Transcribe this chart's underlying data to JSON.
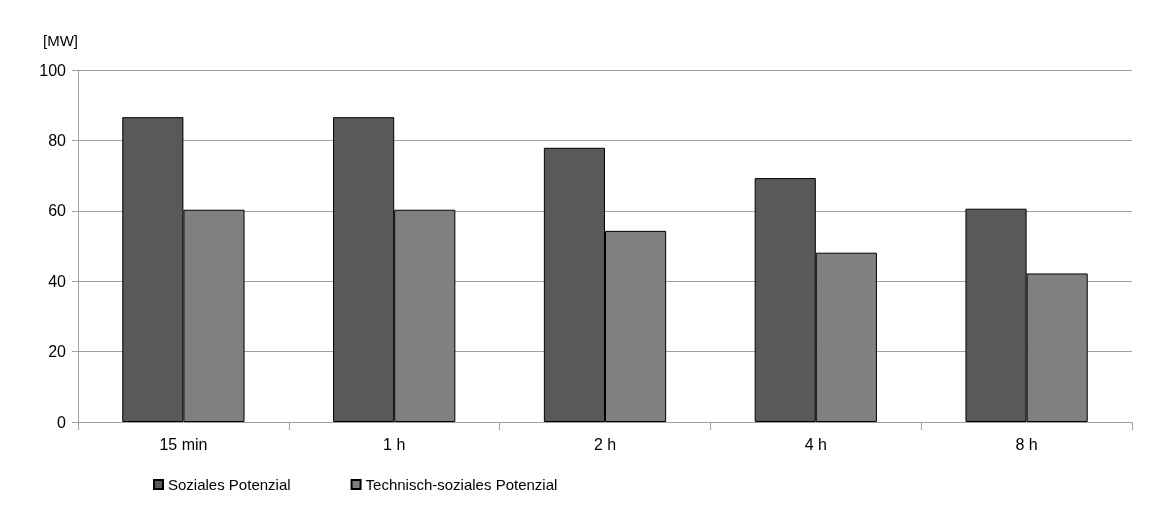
{
  "chart_data": {
    "type": "bar",
    "ylabel": "[MW]",
    "categories": [
      "15 min",
      "1 h",
      "2 h",
      "4 h",
      "8 h"
    ],
    "series": [
      {
        "name": "Soziales Potenzial",
        "color": "#595959",
        "values": [
          86.6,
          86.6,
          77.9,
          69.3,
          60.6
        ]
      },
      {
        "name": "Technisch-soziales Potenzial",
        "color": "#808080",
        "values": [
          60.3,
          60.3,
          54.3,
          48.1,
          42.2
        ]
      }
    ],
    "ylim": [
      0,
      100
    ],
    "yticks": [
      0,
      20,
      40,
      60,
      80,
      100
    ],
    "grid": "y",
    "legend": "bottom left"
  }
}
